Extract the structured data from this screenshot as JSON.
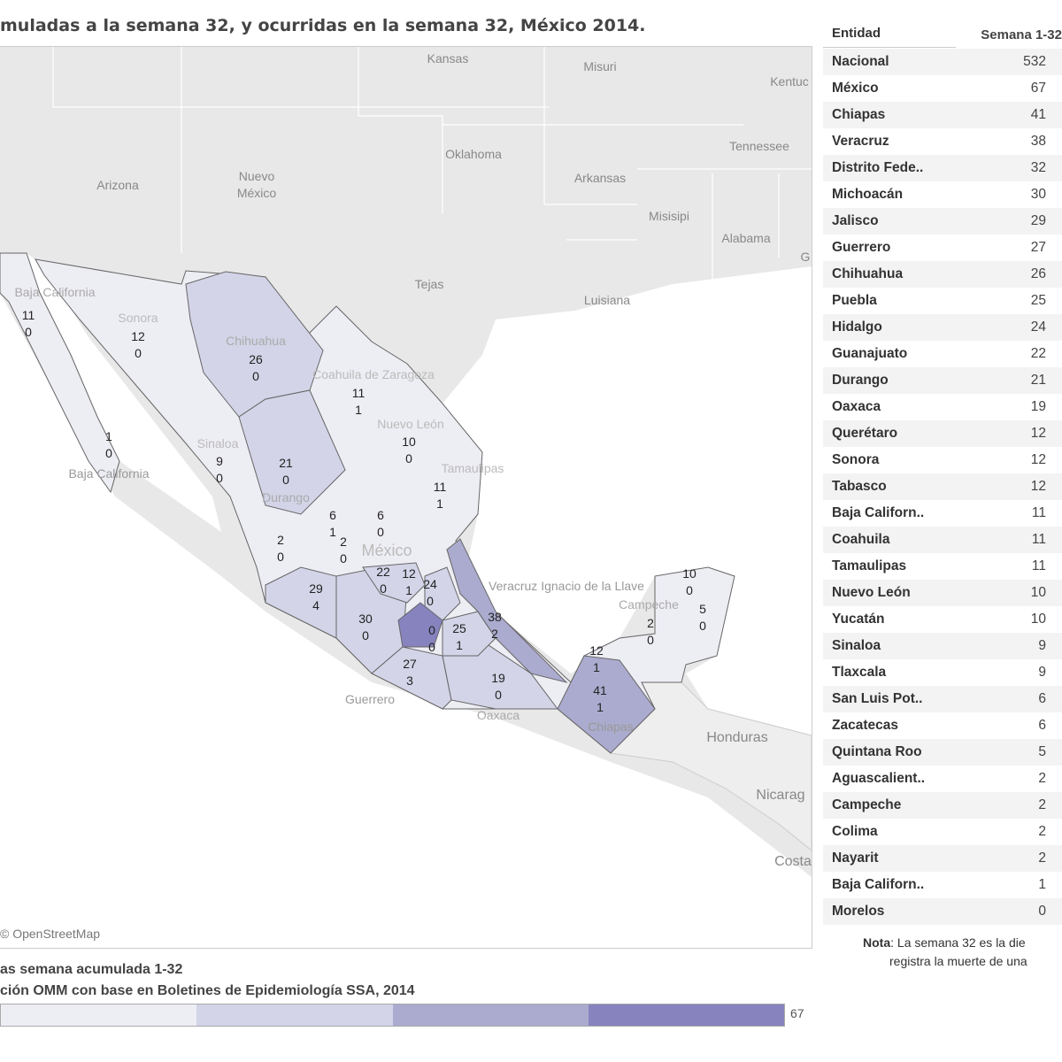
{
  "title": "muladas a la semana 32, y ocurridas en la semana 32, México 2014.",
  "map": {
    "attribution": "© OpenStreetMap",
    "background_labels": [
      "Kansas",
      "Misuri",
      "Kentuc",
      "Tennessee",
      "Oklahoma",
      "Arkansas",
      "Arizona",
      "Nuevo\nMéxico",
      "Misisipi",
      "Alabama",
      "Tejas",
      "Luisiana",
      "Honduras",
      "Nicarag",
      "Costa",
      "G"
    ],
    "faint_labels": [
      "Baja California",
      "Baja California",
      "Sonora",
      "Chihuahua",
      "Coahuila de Zaragoza",
      "Nuevo León",
      "Tamaulipas",
      "Sinaloa",
      "Durango",
      "México",
      "Veracruz Ignacio de la Llave",
      "Guerrero",
      "Oaxaca",
      "Chiapas",
      "Campeche"
    ],
    "states": [
      {
        "name": "Baja California",
        "total": "11",
        "week": "0"
      },
      {
        "name": "Sonora",
        "total": "12",
        "week": "0"
      },
      {
        "name": "Chihuahua",
        "total": "26",
        "week": "0"
      },
      {
        "name": "Coahuila",
        "total": "11",
        "week": "1"
      },
      {
        "name": "Baja California Sur",
        "total": "1",
        "week": "0"
      },
      {
        "name": "Nuevo León",
        "total": "10",
        "week": "0"
      },
      {
        "name": "Sinaloa",
        "total": "9",
        "week": "0"
      },
      {
        "name": "Durango",
        "total": "21",
        "week": "0"
      },
      {
        "name": "Tamaulipas",
        "total": "11",
        "week": "1"
      },
      {
        "name": "Zacatecas",
        "total": "6",
        "week": "1"
      },
      {
        "name": "San Luis Potosí",
        "total": "6",
        "week": "0"
      },
      {
        "name": "Nayarit",
        "total": "2",
        "week": "0"
      },
      {
        "name": "Aguascalientes",
        "total": "2",
        "week": "0"
      },
      {
        "name": "Guanajuato",
        "total": "22",
        "week": "0"
      },
      {
        "name": "Querétaro",
        "total": "12",
        "week": "1"
      },
      {
        "name": "Hidalgo",
        "total": "24",
        "week": "0"
      },
      {
        "name": "Jalisco",
        "total": "29",
        "week": "4"
      },
      {
        "name": "Veracruz",
        "total": "38",
        "week": "2"
      },
      {
        "name": "Michoacán",
        "total": "30",
        "week": "0"
      },
      {
        "name": "Morelos",
        "total": "0",
        "week": "0"
      },
      {
        "name": "Puebla",
        "total": "25",
        "week": "1"
      },
      {
        "name": "Guerrero",
        "total": "27",
        "week": "3"
      },
      {
        "name": "Oaxaca",
        "total": "19",
        "week": "0"
      },
      {
        "name": "Tabasco",
        "total": "12",
        "week": "1"
      },
      {
        "name": "Chiapas",
        "total": "41",
        "week": "1"
      },
      {
        "name": "Campeche",
        "total": "2",
        "week": "0"
      },
      {
        "name": "Yucatán",
        "total": "10",
        "week": "0"
      },
      {
        "name": "Quintana Roo",
        "total": "5",
        "week": "0"
      }
    ]
  },
  "table": {
    "headers": [
      "Entidad",
      "Semana 1-32"
    ],
    "rows": [
      [
        "Nacional",
        "532"
      ],
      [
        "México",
        "67"
      ],
      [
        "Chiapas",
        "41"
      ],
      [
        "Veracruz",
        "38"
      ],
      [
        "Distrito Fede..",
        "32"
      ],
      [
        "Michoacán",
        "30"
      ],
      [
        "Jalisco",
        "29"
      ],
      [
        "Guerrero",
        "27"
      ],
      [
        "Chihuahua",
        "26"
      ],
      [
        "Puebla",
        "25"
      ],
      [
        "Hidalgo",
        "24"
      ],
      [
        "Guanajuato",
        "22"
      ],
      [
        "Durango",
        "21"
      ],
      [
        "Oaxaca",
        "19"
      ],
      [
        "Querétaro",
        "12"
      ],
      [
        "Sonora",
        "12"
      ],
      [
        "Tabasco",
        "12"
      ],
      [
        "Baja Californ..",
        "11"
      ],
      [
        "Coahuila",
        "11"
      ],
      [
        "Tamaulipas",
        "11"
      ],
      [
        "Nuevo León",
        "10"
      ],
      [
        "Yucatán",
        "10"
      ],
      [
        "Sinaloa",
        "9"
      ],
      [
        "Tlaxcala",
        "9"
      ],
      [
        "San Luis Pot..",
        "6"
      ],
      [
        "Zacatecas",
        "6"
      ],
      [
        "Quintana Roo",
        "5"
      ],
      [
        "Aguascalient..",
        "2"
      ],
      [
        "Campeche",
        "2"
      ],
      [
        "Colima",
        "2"
      ],
      [
        "Nayarit",
        "2"
      ],
      [
        "Baja Californ..",
        "1"
      ],
      [
        "Morelos",
        "0"
      ]
    ]
  },
  "note": {
    "bold": "Nota",
    "line1": ": La semana 32 es la die",
    "line2": "registra la muerte de una"
  },
  "legend": {
    "line1": "as semana acumulada 1-32",
    "line2": "ción OMM con base en Boletines de Epidemiología SSA, 2014",
    "max": "67",
    "colors": [
      "#ededf4",
      "#d3d4e8",
      "#ababcf",
      "#8783bf"
    ]
  }
}
